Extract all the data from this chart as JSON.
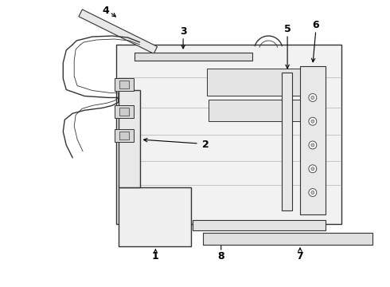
{
  "background_color": "#ffffff",
  "line_color": "#333333",
  "label_color": "#000000",
  "figure_width": 4.9,
  "figure_height": 3.6,
  "dpi": 100,
  "lw_main": 1.0,
  "lw_thin": 0.6
}
